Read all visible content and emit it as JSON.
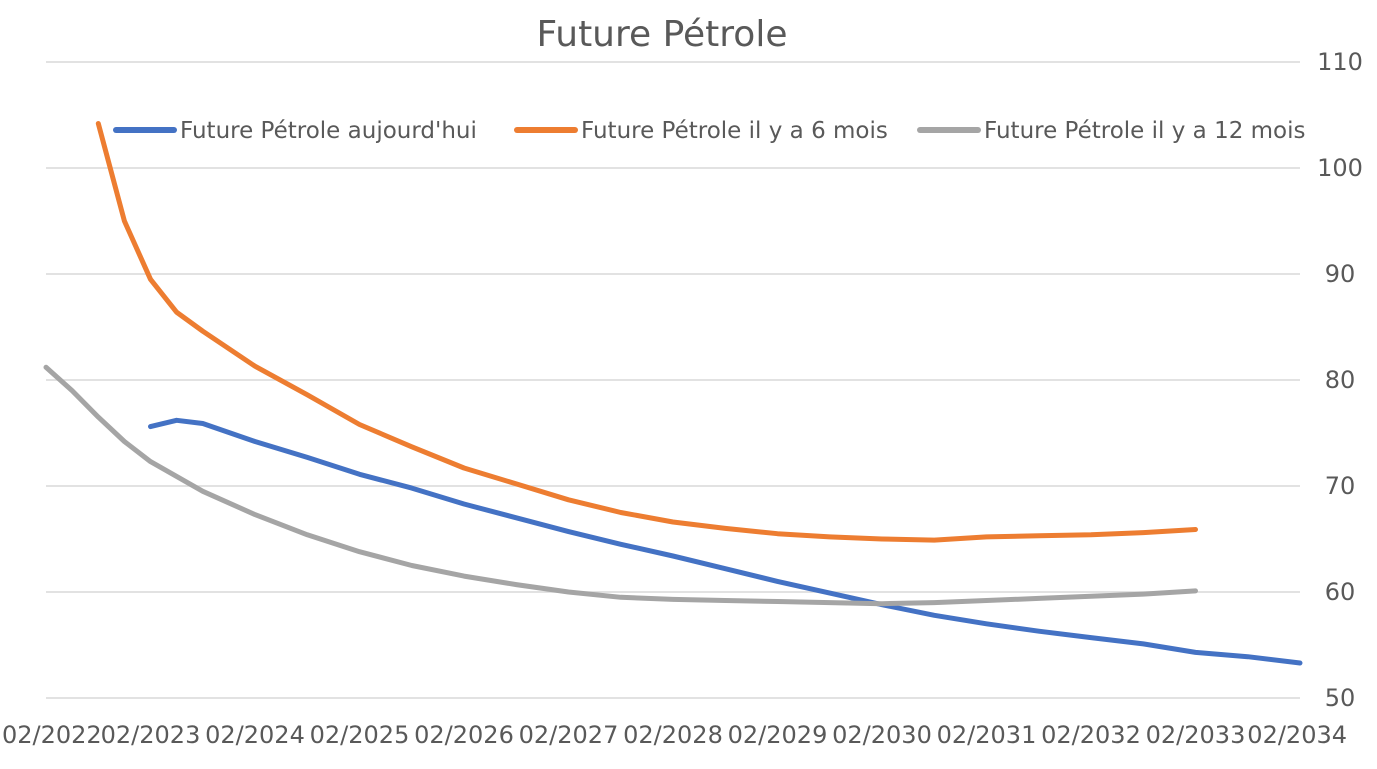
{
  "chart_data": {
    "type": "line",
    "title": "Future Pétrole",
    "xlabel": "",
    "ylabel": "",
    "x_ticks": [
      "02/2022",
      "02/2023",
      "02/2024",
      "02/2025",
      "02/2026",
      "02/2027",
      "02/2028",
      "02/2029",
      "02/2030",
      "02/2031",
      "02/2032",
      "02/2033",
      "02/2034"
    ],
    "xlim": [
      "02/2022",
      "02/2034"
    ],
    "y_ticks": [
      50,
      60,
      70,
      80,
      90,
      100,
      110
    ],
    "ylim": [
      50,
      110
    ],
    "y_axis_side": "right",
    "grid": true,
    "legend_position": "top",
    "series": [
      {
        "name": "Future Pétrole aujourd'hui",
        "color": "#4472c4",
        "points": [
          [
            "2023-02",
            75.6
          ],
          [
            "2023-05",
            76.2
          ],
          [
            "2023-08",
            75.9
          ],
          [
            "2024-02",
            74.2
          ],
          [
            "2024-08",
            72.7
          ],
          [
            "2025-02",
            71.1
          ],
          [
            "2025-08",
            69.8
          ],
          [
            "2026-02",
            68.3
          ],
          [
            "2026-08",
            67.0
          ],
          [
            "2027-02",
            65.7
          ],
          [
            "2027-08",
            64.5
          ],
          [
            "2028-02",
            63.4
          ],
          [
            "2028-08",
            62.2
          ],
          [
            "2029-02",
            61.0
          ],
          [
            "2029-08",
            59.9
          ],
          [
            "2030-02",
            58.8
          ],
          [
            "2030-08",
            57.8
          ],
          [
            "2031-02",
            57.0
          ],
          [
            "2031-08",
            56.3
          ],
          [
            "2032-02",
            55.7
          ],
          [
            "2032-08",
            55.1
          ],
          [
            "2033-02",
            54.3
          ],
          [
            "2033-08",
            53.9
          ],
          [
            "2034-02",
            53.3
          ]
        ]
      },
      {
        "name": "Future Pétrole il y a 6 mois",
        "color": "#ed7d31",
        "points": [
          [
            "2022-08",
            104.2
          ],
          [
            "2022-11",
            95.0
          ],
          [
            "2023-02",
            89.5
          ],
          [
            "2023-05",
            86.4
          ],
          [
            "2023-08",
            84.6
          ],
          [
            "2024-02",
            81.3
          ],
          [
            "2024-08",
            78.6
          ],
          [
            "2025-02",
            75.8
          ],
          [
            "2025-08",
            73.7
          ],
          [
            "2026-02",
            71.7
          ],
          [
            "2026-08",
            70.2
          ],
          [
            "2027-02",
            68.7
          ],
          [
            "2027-08",
            67.5
          ],
          [
            "2028-02",
            66.6
          ],
          [
            "2028-08",
            66.0
          ],
          [
            "2029-02",
            65.5
          ],
          [
            "2029-08",
            65.2
          ],
          [
            "2030-02",
            65.0
          ],
          [
            "2030-08",
            64.9
          ],
          [
            "2031-02",
            65.2
          ],
          [
            "2031-08",
            65.3
          ],
          [
            "2032-02",
            65.4
          ],
          [
            "2032-08",
            65.6
          ],
          [
            "2033-02",
            65.9
          ]
        ]
      },
      {
        "name": "Future Pétrole il y a 12 mois",
        "color": "#a5a5a5",
        "points": [
          [
            "2022-02",
            81.2
          ],
          [
            "2022-05",
            79.0
          ],
          [
            "2022-08",
            76.5
          ],
          [
            "2022-11",
            74.2
          ],
          [
            "2023-02",
            72.3
          ],
          [
            "2023-08",
            69.5
          ],
          [
            "2024-02",
            67.3
          ],
          [
            "2024-08",
            65.4
          ],
          [
            "2025-02",
            63.8
          ],
          [
            "2025-08",
            62.5
          ],
          [
            "2026-02",
            61.5
          ],
          [
            "2026-08",
            60.7
          ],
          [
            "2027-02",
            60.0
          ],
          [
            "2027-08",
            59.5
          ],
          [
            "2028-02",
            59.3
          ],
          [
            "2028-08",
            59.2
          ],
          [
            "2029-02",
            59.1
          ],
          [
            "2029-08",
            59.0
          ],
          [
            "2030-02",
            58.9
          ],
          [
            "2030-08",
            59.0
          ],
          [
            "2031-02",
            59.2
          ],
          [
            "2031-08",
            59.4
          ],
          [
            "2032-02",
            59.6
          ],
          [
            "2032-08",
            59.8
          ],
          [
            "2033-02",
            60.1
          ]
        ]
      }
    ]
  }
}
